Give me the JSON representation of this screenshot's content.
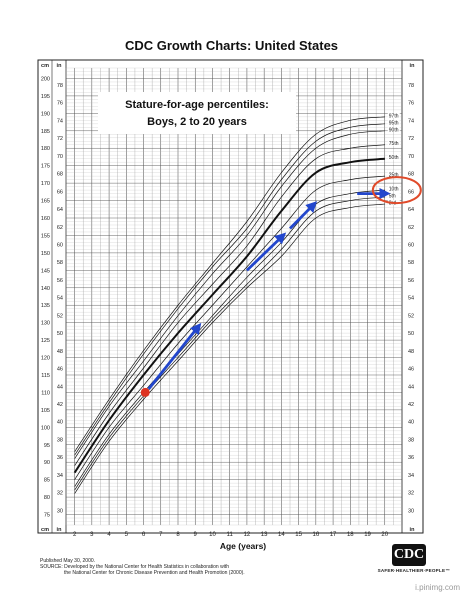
{
  "chart_data": {
    "type": "line",
    "title": "CDC Growth Charts: United States",
    "subtitle_line1": "Stature-for-age percentiles:",
    "subtitle_line2": "Boys, 2 to 20 years",
    "xlabel": "Age (years)",
    "x_ticks": [
      2,
      3,
      4,
      5,
      6,
      7,
      8,
      9,
      10,
      11,
      12,
      13,
      14,
      15,
      16,
      17,
      18,
      19,
      20
    ],
    "xlim": [
      1.5,
      21
    ],
    "cm_unit": "cm",
    "in_unit": "in",
    "cm_ticks": [
      75,
      80,
      85,
      90,
      95,
      100,
      105,
      110,
      115,
      120,
      125,
      130,
      135,
      140,
      145,
      150,
      155,
      160,
      165,
      170,
      175,
      180,
      185,
      190,
      195,
      200
    ],
    "in_ticks": [
      30,
      32,
      34,
      36,
      38,
      40,
      42,
      44,
      46,
      48,
      50,
      52,
      54,
      56,
      58,
      60,
      62,
      64,
      66,
      68,
      70,
      72,
      74,
      76,
      78
    ],
    "ylim_cm": [
      72,
      203
    ],
    "grid": true,
    "x": [
      2,
      4,
      6,
      8,
      10,
      12,
      14,
      16,
      18,
      20
    ],
    "series": [
      {
        "name": "97th",
        "values": [
          93,
          108,
          122,
          135,
          147,
          159,
          173,
          184,
          188,
          189
        ]
      },
      {
        "name": "95th",
        "values": [
          92,
          107,
          121,
          134,
          146,
          157,
          171,
          182,
          186,
          187
        ]
      },
      {
        "name": "90th",
        "values": [
          91,
          106,
          119,
          132,
          144,
          155,
          169,
          180,
          184,
          185
        ]
      },
      {
        "name": "75th",
        "values": [
          89,
          104,
          117,
          130,
          141,
          152,
          166,
          177,
          180,
          181
        ]
      },
      {
        "name": "50th",
        "values": [
          87,
          102,
          115,
          127,
          138,
          149,
          162,
          173,
          176,
          177
        ]
      },
      {
        "name": "25th",
        "values": [
          85,
          100,
          112,
          124,
          135,
          146,
          157,
          168,
          171,
          172
        ]
      },
      {
        "name": "10th",
        "values": [
          83,
          98,
          110,
          121,
          132,
          143,
          153,
          164,
          167,
          168
        ]
      },
      {
        "name": "5th",
        "values": [
          82,
          97,
          109,
          120,
          131,
          141,
          151,
          162,
          165,
          166
        ]
      },
      {
        "name": "3rd",
        "values": [
          81,
          96,
          108,
          119,
          130,
          140,
          149,
          160,
          163,
          164
        ]
      }
    ],
    "bold_series": "50th",
    "marker": {
      "age": 6.1,
      "cm": 110,
      "color": "#dd3322"
    },
    "arrows": [
      {
        "from": [
          6.3,
          111
        ],
        "to": [
          9.2,
          129
        ]
      },
      {
        "from": [
          12.0,
          145
        ],
        "to": [
          14.1,
          155
        ]
      },
      {
        "from": [
          14.5,
          157
        ],
        "to": [
          15.9,
          164
        ]
      },
      {
        "from": [
          18.4,
          167
        ],
        "to": [
          20.1,
          167
        ]
      }
    ],
    "arrow_color": "#2246cc",
    "highlight": {
      "age": 20.7,
      "cm": 168,
      "color": "#e04a2a"
    }
  },
  "footer": {
    "line1": "Published May 30, 2000.",
    "line2": "SOURCE: Developed by the National Center for Health Statistics in collaboration with",
    "line3": "the National Center for Chronic Disease Prevention and Health Promotion (2000)."
  },
  "logo": {
    "text": "CDC",
    "tagline": "SAFER·HEALTHIER·PEOPLE™"
  },
  "watermark": "i.pinimg.com"
}
